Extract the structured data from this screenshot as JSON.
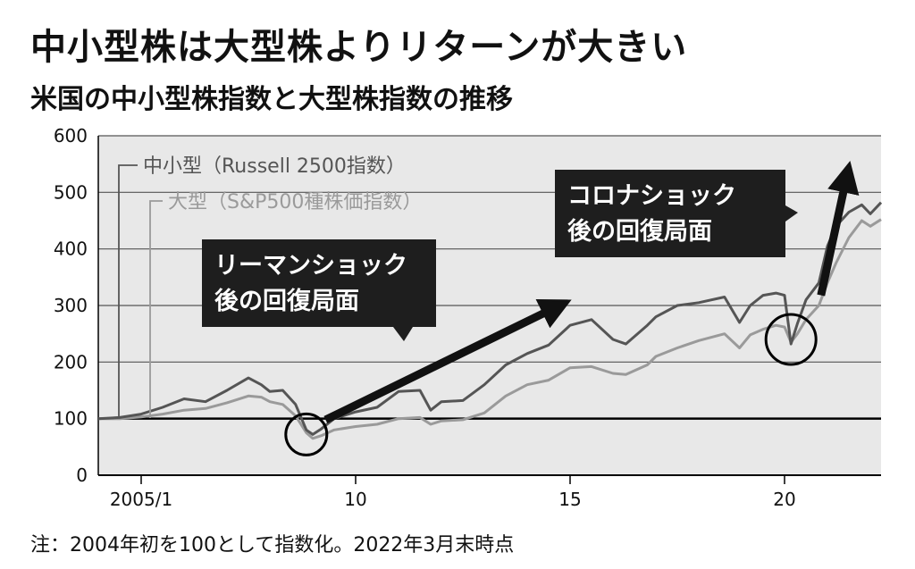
{
  "title": "中小型株は大型株よりリターンが大きい",
  "subtitle": "米国の中小型株指数と大型株指数の推移",
  "note": "注：2004年初を100として指数化。2022年3月末時点",
  "chart_data": {
    "type": "line",
    "xlim": [
      2004.0,
      2022.25
    ],
    "ylim": [
      0,
      600
    ],
    "y_ticks": [
      0,
      100,
      200,
      300,
      400,
      500,
      600
    ],
    "y_tick_labels": [
      "0",
      "100",
      "200",
      "300",
      "400",
      "500",
      "600"
    ],
    "x_ticks": [
      2005.0,
      2010.0,
      2015.0,
      2020.0
    ],
    "x_tick_labels": [
      "2005/1",
      "10",
      "15",
      "20"
    ],
    "grid": "horizontal",
    "plot_background": "#e8e8e8",
    "series": [
      {
        "name": "中小型（Russell 2500指数）",
        "color": "#555555",
        "x": [
          2004.0,
          2004.5,
          2005.0,
          2005.5,
          2006.0,
          2006.5,
          2007.0,
          2007.5,
          2007.8,
          2008.0,
          2008.3,
          2008.6,
          2008.85,
          2009.0,
          2009.2,
          2009.5,
          2010.0,
          2010.5,
          2011.0,
          2011.5,
          2011.75,
          2012.0,
          2012.5,
          2013.0,
          2013.5,
          2014.0,
          2014.5,
          2015.0,
          2015.5,
          2016.0,
          2016.3,
          2016.8,
          2017.0,
          2017.5,
          2018.0,
          2018.6,
          2018.95,
          2019.2,
          2019.5,
          2019.8,
          2020.0,
          2020.15,
          2020.3,
          2020.5,
          2020.8,
          2021.0,
          2021.2,
          2021.5,
          2021.8,
          2022.0,
          2022.25
        ],
        "values": [
          100,
          102,
          108,
          120,
          135,
          130,
          150,
          172,
          160,
          148,
          150,
          125,
          80,
          72,
          82,
          100,
          112,
          120,
          148,
          150,
          115,
          130,
          132,
          160,
          195,
          215,
          230,
          265,
          275,
          240,
          232,
          265,
          280,
          300,
          305,
          315,
          270,
          300,
          318,
          322,
          318,
          232,
          268,
          310,
          340,
          405,
          440,
          465,
          478,
          462,
          482
        ]
      },
      {
        "name": "大型（S&P500種株価指数）",
        "color": "#9a9a9a",
        "x": [
          2004.0,
          2004.5,
          2005.0,
          2005.5,
          2006.0,
          2006.5,
          2007.0,
          2007.5,
          2007.8,
          2008.0,
          2008.3,
          2008.6,
          2008.85,
          2009.0,
          2009.2,
          2009.5,
          2010.0,
          2010.5,
          2011.0,
          2011.5,
          2011.75,
          2012.0,
          2012.5,
          2013.0,
          2013.5,
          2014.0,
          2014.5,
          2015.0,
          2015.5,
          2016.0,
          2016.3,
          2016.8,
          2017.0,
          2017.5,
          2018.0,
          2018.6,
          2018.95,
          2019.2,
          2019.5,
          2019.8,
          2020.0,
          2020.15,
          2020.3,
          2020.5,
          2020.8,
          2021.0,
          2021.2,
          2021.5,
          2021.8,
          2022.0,
          2022.25
        ],
        "values": [
          100,
          100,
          103,
          108,
          115,
          118,
          128,
          140,
          138,
          130,
          125,
          105,
          75,
          65,
          70,
          80,
          86,
          90,
          100,
          102,
          90,
          96,
          98,
          110,
          140,
          160,
          168,
          190,
          192,
          180,
          178,
          195,
          210,
          225,
          238,
          250,
          225,
          248,
          258,
          265,
          262,
          235,
          250,
          275,
          300,
          340,
          375,
          420,
          450,
          440,
          452
        ]
      }
    ],
    "annotations": [
      {
        "text_lines": [
          "リーマンショック",
          "後の回復局面"
        ]
      },
      {
        "text_lines": [
          "コロナショック",
          "後の回復局面"
        ]
      }
    ]
  }
}
